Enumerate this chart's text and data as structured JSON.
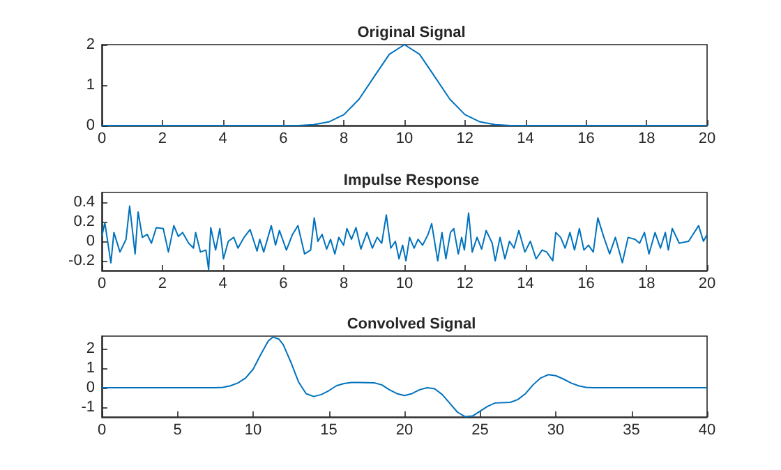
{
  "chart_data": [
    {
      "type": "line",
      "title": "Original Signal",
      "xlim": [
        0,
        20
      ],
      "xticks": [
        0,
        2,
        4,
        6,
        8,
        10,
        12,
        14,
        16,
        18,
        20
      ],
      "ylim": [
        0,
        2
      ],
      "yticks": [
        0,
        1,
        2
      ],
      "grid": false,
      "marker": "none",
      "x": [
        0,
        6,
        6.5,
        7,
        7.5,
        8,
        8.5,
        9,
        9.5,
        10,
        10.5,
        11,
        11.5,
        12,
        12.5,
        13,
        13.5,
        14,
        20
      ],
      "series": [
        {
          "color": "#0072bd",
          "values": [
            0,
            0,
            0,
            0.02,
            0.09,
            0.27,
            0.65,
            1.21,
            1.76,
            2,
            1.76,
            1.21,
            0.65,
            0.27,
            0.09,
            0.02,
            0,
            0,
            0
          ]
        }
      ]
    },
    {
      "type": "line",
      "title": "Impulse Response",
      "xlim": [
        0,
        20
      ],
      "xticks": [
        0,
        2,
        4,
        6,
        8,
        10,
        12,
        14,
        16,
        18,
        20
      ],
      "ylim": [
        -0.3,
        0.5
      ],
      "yticks": [
        -0.2,
        0,
        0.2,
        0.4
      ],
      "grid": false,
      "marker": "none",
      "x": [
        0,
        0.1,
        0.3,
        0.4,
        0.6,
        0.8,
        0.92,
        1.1,
        1.2,
        1.34,
        1.5,
        1.64,
        1.8,
        2.03,
        2.2,
        2.38,
        2.53,
        2.67,
        2.87,
        3.03,
        3.1,
        3.26,
        3.44,
        3.53,
        3.6,
        3.76,
        3.9,
        4.02,
        4.18,
        4.36,
        4.5,
        4.7,
        4.9,
        5.13,
        5.22,
        5.35,
        5.6,
        5.74,
        5.87,
        6.1,
        6.3,
        6.48,
        6.7,
        6.9,
        7.02,
        7.14,
        7.28,
        7.43,
        7.56,
        7.7,
        7.83,
        7.99,
        8.1,
        8.25,
        8.4,
        8.56,
        8.76,
        8.94,
        9.1,
        9.25,
        9.4,
        9.55,
        9.7,
        9.82,
        9.94,
        10.05,
        10.17,
        10.32,
        10.45,
        10.6,
        10.78,
        10.9,
        11.1,
        11.24,
        11.37,
        11.52,
        11.63,
        11.78,
        11.89,
        11.98,
        12.12,
        12.24,
        12.4,
        12.55,
        12.7,
        12.9,
        13.0,
        13.16,
        13.32,
        13.47,
        13.62,
        13.78,
        13.98,
        14.16,
        14.35,
        14.55,
        14.7,
        14.9,
        15.0,
        15.16,
        15.31,
        15.47,
        15.62,
        15.78,
        15.93,
        16.08,
        16.24,
        16.39,
        16.59,
        16.78,
        16.97,
        17.2,
        17.39,
        17.62,
        17.77,
        17.93,
        18.08,
        18.28,
        18.46,
        18.62,
        18.72,
        18.85,
        19.08,
        19.39,
        19.72,
        19.88,
        20
      ],
      "series": [
        {
          "color": "#0072bd",
          "values": [
            0.05,
            0.19,
            -0.22,
            0.09,
            -0.11,
            0.02,
            0.36,
            -0.13,
            0.3,
            0.04,
            0.07,
            -0.02,
            0.14,
            0.13,
            -0.11,
            0.16,
            0.05,
            0.09,
            -0.02,
            -0.07,
            0.09,
            -0.11,
            -0.09,
            -0.29,
            0.14,
            -0.09,
            0.13,
            -0.18,
            0,
            0.04,
            -0.07,
            0.04,
            0.12,
            -0.1,
            0.02,
            -0.11,
            0.16,
            -0.04,
            0.11,
            -0.09,
            0.07,
            0.16,
            -0.13,
            -0.09,
            0.24,
            0,
            0.07,
            -0.08,
            0.02,
            -0.13,
            0.04,
            -0.04,
            0.13,
            0.02,
            0.14,
            -0.08,
            0.09,
            -0.07,
            0.04,
            -0.02,
            0.27,
            -0.07,
            0,
            -0.18,
            -0.04,
            -0.2,
            0.04,
            -0.07,
            0.02,
            -0.04,
            0.07,
            0.18,
            -0.2,
            0.09,
            -0.18,
            0.09,
            0.13,
            -0.13,
            0.04,
            -0.09,
            0.29,
            -0.11,
            0.04,
            -0.08,
            0.11,
            -0.02,
            -0.2,
            0.04,
            -0.18,
            0,
            -0.07,
            0.11,
            -0.11,
            0,
            -0.18,
            -0.09,
            -0.11,
            -0.2,
            0.09,
            0.04,
            -0.07,
            0.09,
            -0.09,
            0.13,
            -0.09,
            -0.04,
            -0.11,
            0.24,
            0.04,
            -0.13,
            0.04,
            -0.22,
            0.04,
            0.02,
            -0.02,
            0.09,
            -0.13,
            0.09,
            -0.07,
            0.09,
            -0.09,
            0.13,
            -0.02,
            0,
            0.16,
            0,
            0.07
          ]
        }
      ]
    },
    {
      "type": "line",
      "title": "Convolved Signal",
      "xlim": [
        0,
        40
      ],
      "xticks": [
        0,
        5,
        10,
        15,
        20,
        25,
        30,
        35,
        40
      ],
      "ylim": [
        -1.5,
        2.65
      ],
      "yticks": [
        -1,
        0,
        1,
        2
      ],
      "grid": false,
      "marker": "none",
      "x": [
        0,
        7.5,
        8,
        8.5,
        9,
        9.5,
        10,
        10.5,
        11,
        11.3,
        11.7,
        12,
        12.5,
        13,
        13.5,
        14,
        14.5,
        15,
        15.5,
        16,
        16.5,
        17,
        18,
        18.5,
        19,
        19.5,
        20,
        20.5,
        21,
        21.5,
        22,
        22.5,
        23,
        23.5,
        24,
        24.5,
        25,
        25.5,
        26,
        27,
        27.5,
        28,
        28.5,
        29,
        29.5,
        30,
        30.5,
        31,
        31.5,
        32,
        32.5,
        40
      ],
      "series": [
        {
          "color": "#0072bd",
          "values": [
            0,
            0,
            0.02,
            0.1,
            0.25,
            0.5,
            0.95,
            1.7,
            2.4,
            2.6,
            2.5,
            2.2,
            1.3,
            0.3,
            -0.3,
            -0.45,
            -0.35,
            -0.15,
            0.1,
            0.22,
            0.27,
            0.27,
            0.25,
            0.15,
            -0.1,
            -0.3,
            -0.4,
            -0.3,
            -0.1,
            0,
            -0.05,
            -0.35,
            -0.8,
            -1.25,
            -1.48,
            -1.45,
            -1.2,
            -0.95,
            -0.78,
            -0.75,
            -0.6,
            -0.3,
            0.15,
            0.5,
            0.67,
            0.62,
            0.45,
            0.25,
            0.1,
            0.02,
            0,
            0
          ]
        }
      ]
    }
  ]
}
